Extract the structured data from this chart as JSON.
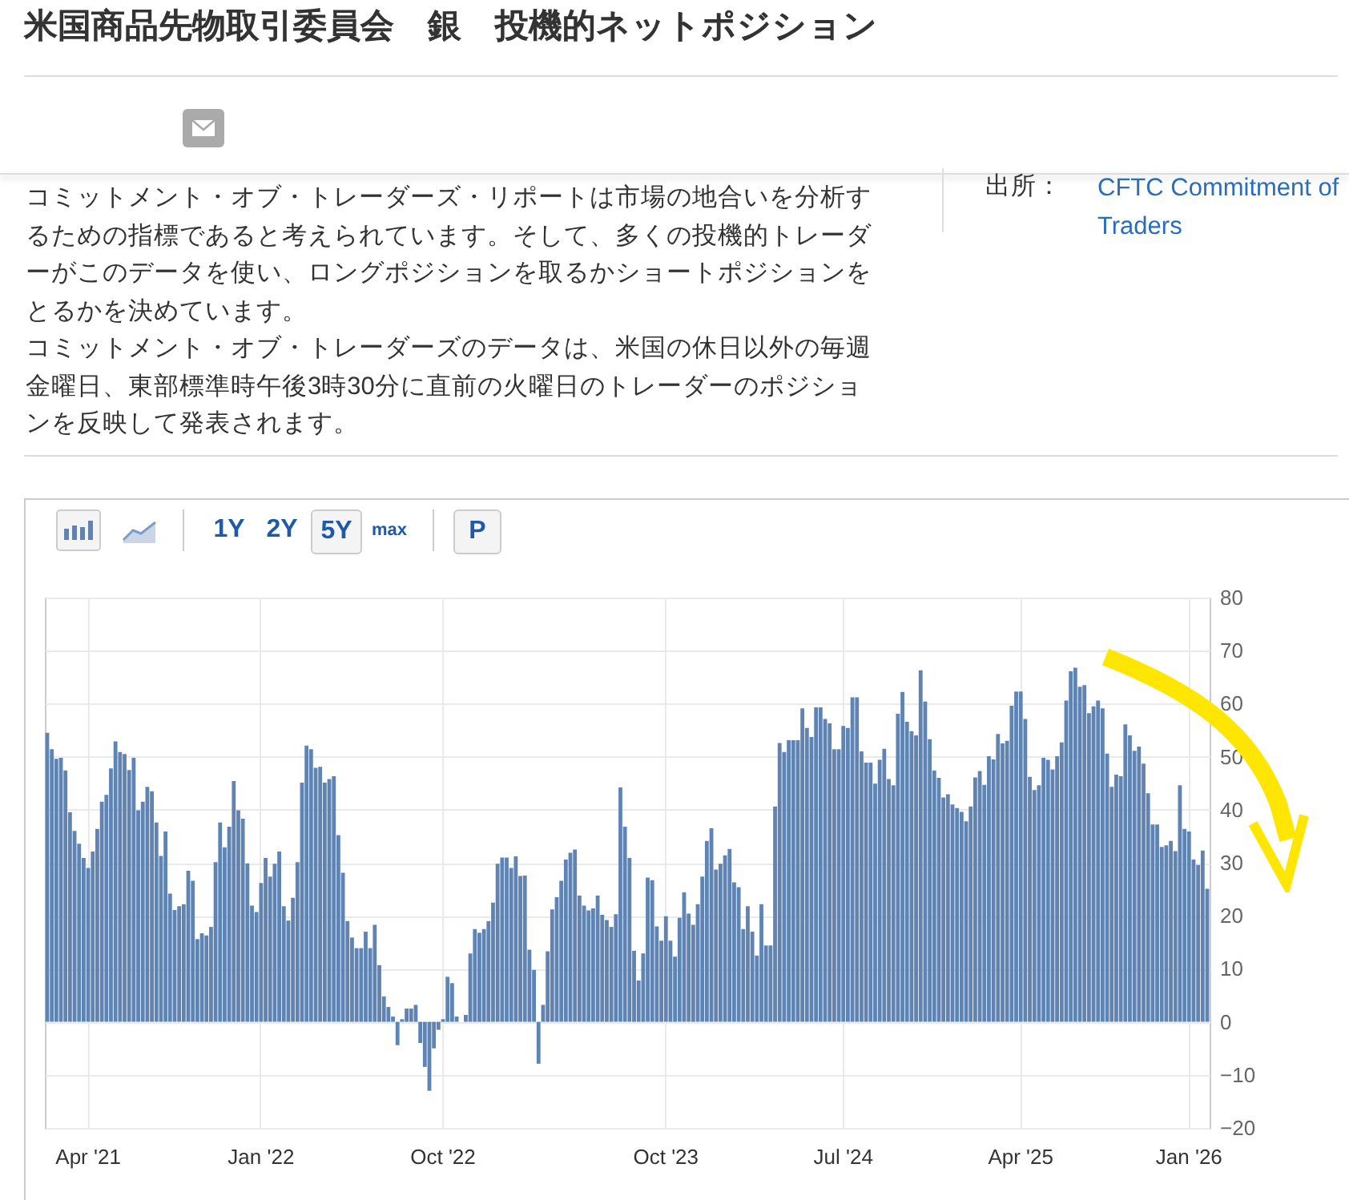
{
  "chart_data": {
    "type": "bar",
    "title": "米国商品先物取引委員会　銀　投機的ネットポジション",
    "annotations": [
      "コミットメント・オブ・トレーダーズ・リポートは市場の地合いを分析するための指標であると考えられています。そして、多くの投機的トレーダーがこのデータを使い、ロングポジションを取るかショートポジションをとるかを決めています。",
      "コミットメント・オブ・トレーダーズのデータは、米国の休日以外の毎週金曜日、東部標準時午後3時30分に直前の火曜日のトレーダーのポジションを反映して発表されます。",
      "出所：",
      "CFTC Commitment of Traders",
      "1Y",
      "2Y",
      "5Y",
      "max",
      "P"
    ],
    "categories": [
      null,
      null,
      null,
      null,
      null,
      null,
      null,
      null,
      null,
      "Apr '21",
      null,
      null,
      null,
      null,
      null,
      null,
      null,
      null,
      null,
      null,
      null,
      null,
      null,
      null,
      null,
      null,
      null,
      null,
      null,
      null,
      null,
      null,
      null,
      null,
      null,
      null,
      null,
      null,
      null,
      null,
      null,
      null,
      null,
      null,
      null,
      null,
      null,
      "Jan '22",
      null,
      null,
      null,
      null,
      null,
      null,
      null,
      null,
      null,
      null,
      null,
      null,
      null,
      null,
      null,
      null,
      null,
      null,
      null,
      null,
      null,
      null,
      null,
      null,
      null,
      null,
      null,
      null,
      null,
      null,
      null,
      null,
      null,
      null,
      null,
      null,
      null,
      null,
      null,
      "Oct '22",
      null,
      null,
      null,
      null,
      null,
      null,
      null,
      null,
      null,
      null,
      null,
      null,
      null,
      null,
      null,
      null,
      null,
      null,
      null,
      null,
      null,
      null,
      null,
      null,
      null,
      null,
      null,
      null,
      null,
      null,
      null,
      null,
      null,
      null,
      null,
      null,
      null,
      null,
      null,
      null,
      null,
      null,
      null,
      null,
      null,
      null,
      null,
      null,
      "Oct '23",
      null,
      null,
      null,
      null,
      null,
      null,
      null,
      null,
      null,
      null,
      null,
      null,
      null,
      null,
      null,
      null,
      null,
      null,
      null,
      null,
      null,
      null,
      null,
      null,
      null,
      null,
      null,
      null,
      null,
      null,
      null,
      null,
      null,
      null,
      null,
      null,
      null,
      null,
      "Jul '24",
      null,
      null,
      null,
      null,
      null,
      null,
      null,
      null,
      null,
      null,
      null,
      null,
      null,
      null,
      null,
      null,
      null,
      null,
      null,
      null,
      null,
      null,
      null,
      null,
      null,
      null,
      null,
      null,
      null,
      null,
      null,
      null,
      null,
      null,
      null,
      null,
      null,
      null,
      "Apr '25",
      null,
      null,
      null,
      null,
      null,
      null,
      null,
      null,
      null,
      null,
      null,
      null,
      null,
      null,
      null,
      null,
      null,
      null,
      null,
      null,
      null,
      null,
      null,
      null,
      null,
      null,
      null,
      null,
      null,
      null,
      null,
      null,
      null,
      null,
      null,
      null,
      "Jan '26",
      null,
      null,
      null,
      null
    ],
    "values": [
      54.5,
      51.4,
      49.6,
      49.8,
      47.4,
      39.5,
      36,
      33.6,
      30.9,
      29,
      32.1,
      36.4,
      41.5,
      42.8,
      47.8,
      52.9,
      50.9,
      50.5,
      47.5,
      49.8,
      39.9,
      41.5,
      44.3,
      43.5,
      37.6,
      31.3,
      35.9,
      24.2,
      21.1,
      21.8,
      22.2,
      28.5,
      26.6,
      15.6,
      16.7,
      16.3,
      17.9,
      30.1,
      37.6,
      32.9,
      36.8,
      45.4,
      39.9,
      38.3,
      29.9,
      21.9,
      20.7,
      26.2,
      30.9,
      27.4,
      29.8,
      32.1,
      21.8,
      19.1,
      23.4,
      30.1,
      45.1,
      52.1,
      51.4,
      47.9,
      48.1,
      45.1,
      45.8,
      46.3,
      35.2,
      28.1,
      19,
      15.9,
      13.9,
      13.9,
      17,
      13.9,
      18.3,
      10.7,
      4.8,
      2.8,
      1,
      -4.4,
      0.5,
      2.5,
      2.5,
      3.2,
      -4,
      -8.5,
      -13,
      -5,
      -1.5,
      0.5,
      8.5,
      7.3,
      1,
      0,
      1.3,
      12.9,
      17.5,
      16.8,
      17.5,
      19,
      22.5,
      29.8,
      31,
      31,
      29,
      31.2,
      27.5,
      27.6,
      13.6,
      9.8,
      -7.9,
      3.2,
      13.3,
      21.2,
      23.5,
      26.6,
      30.6,
      31.9,
      32.5,
      23.8,
      21.9,
      21,
      21.4,
      23.8,
      20.2,
      19.2,
      17.9,
      20.3,
      44.2,
      36.8,
      30.9,
      13.4,
      7.8,
      12.9,
      27.2,
      26.7,
      18,
      15.3,
      19.9,
      15.3,
      12.3,
      19.6,
      24.4,
      20.4,
      18.3,
      22.2,
      27.4,
      34.1,
      36.5,
      28.7,
      29.8,
      31.4,
      32.6,
      26.3,
      25.4,
      17.5,
      21.8,
      17,
      12.5,
      22.2,
      14.4,
      14.4,
      40.6,
      52.6,
      50.9,
      53.1,
      53.1,
      53.1,
      59.1,
      55.4,
      53.7,
      59.3,
      59.3,
      57.1,
      56.3,
      51.4,
      51.4,
      55.8,
      55.4,
      61.2,
      61.2,
      51,
      48.9,
      48.9,
      44.9,
      49.4,
      51.5,
      45.8,
      44.6,
      58.1,
      62.2,
      56.6,
      54.8,
      54,
      66.3,
      60.4,
      53.3,
      47.4,
      46,
      42.3,
      42.9,
      41,
      40.3,
      39.6,
      37.8,
      40.6,
      46.1,
      47.3,
      44.7,
      50.1,
      49.5,
      54.3,
      52.5,
      53,
      59.6,
      62.3,
      62.3,
      57.1,
      46.2,
      43.7,
      44.6,
      49.8,
      49.4,
      47.6,
      50.1,
      52.7,
      60.6,
      66.1,
      66.8,
      63.2,
      63.5,
      58.2,
      59.5,
      60.6,
      59.1,
      50.6,
      44.3,
      46.6,
      46.3,
      56.1,
      54,
      51.1,
      51.9,
      48.7,
      43.1,
      37.2,
      37.2,
      33,
      33.3,
      34.1,
      32.2,
      44.6,
      36.4,
      35.9,
      30.6,
      29.6,
      32.3,
      25.1
    ],
    "color": "#5f84b3",
    "ylim": [
      -20,
      80
    ],
    "yticks": [
      -20,
      -10,
      0,
      10,
      20,
      30,
      40,
      50,
      60,
      70,
      80
    ],
    "grid": true
  }
}
